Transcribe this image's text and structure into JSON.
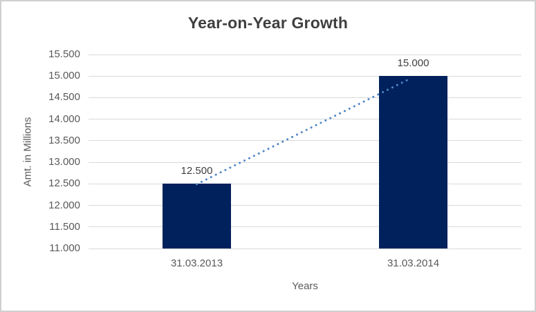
{
  "frame": {
    "background": "#ffffff",
    "border_color": "#cfcfcf"
  },
  "chart_data": {
    "type": "bar",
    "title": "Year-on-Year Growth",
    "xlabel": "Years",
    "ylabel": "Amt. in Millions",
    "categories": [
      "31.03.2013",
      "31.03.2014"
    ],
    "values": [
      12500,
      15000
    ],
    "value_labels": [
      "12.500",
      "15.000"
    ],
    "ylim": [
      11000,
      15500
    ],
    "ytick_step": 500,
    "ytick_labels": [
      "11.000",
      "11.500",
      "12.000",
      "12.500",
      "13.000",
      "13.500",
      "14.000",
      "14.500",
      "15.000",
      "15.500"
    ],
    "grid": true,
    "legend": "none",
    "bar_color": "#01215c",
    "gridline_color": "#d9d9d9",
    "trendline": {
      "style": "dotted",
      "color": "#4f86c7",
      "from_value": 12500,
      "to_value": 15000
    },
    "text_colors": {
      "title": "#3f3f3f",
      "axis": "#595959",
      "data_label": "#404040"
    }
  }
}
